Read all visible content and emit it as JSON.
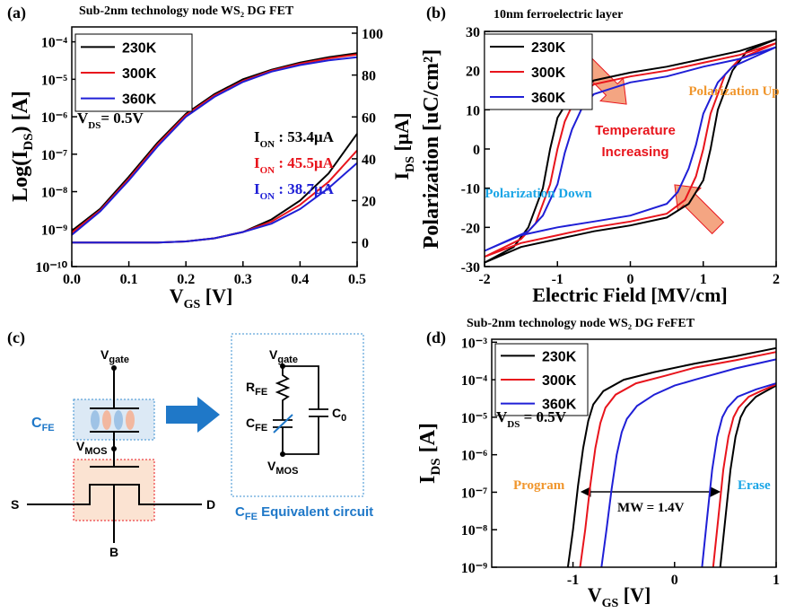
{
  "chart_data": [
    {
      "type": "line",
      "label": "(a)",
      "title": "Sub-2nm technology node WS₂ DG FET",
      "xlabel": [
        "V",
        "GS",
        " [V]"
      ],
      "ylabel": [
        "Log(I",
        "DS",
        ") [A]"
      ],
      "y2label": [
        "I",
        "DS",
        " [μA]"
      ],
      "log_y": true,
      "xlim": [
        0,
        0.5
      ],
      "ylim": [
        1e-10,
        0.00025
      ],
      "y2lim": [
        -11.5,
        103
      ],
      "xticks": [
        {
          "value": 0,
          "label": "0.0"
        },
        {
          "value": 0.1,
          "label": "0.1"
        },
        {
          "value": 0.2,
          "label": "0.2"
        },
        {
          "value": 0.3,
          "label": "0.3"
        },
        {
          "value": 0.4,
          "label": "0.4"
        },
        {
          "value": 0.5,
          "label": "0.5"
        }
      ],
      "yticks": [
        {
          "value": 1e-10,
          "label": "10⁻¹⁰"
        },
        {
          "value": 1e-09,
          "label": "10⁻⁹"
        },
        {
          "value": 1e-08,
          "label": "10⁻⁸"
        },
        {
          "value": 1e-07,
          "label": "10⁻⁷"
        },
        {
          "value": 1e-06,
          "label": "10⁻⁶"
        },
        {
          "value": 1e-05,
          "label": "10⁻⁵"
        },
        {
          "value": 0.0001,
          "label": "10⁻⁴"
        }
      ],
      "y2ticks": [
        0,
        20,
        40,
        60,
        80,
        100
      ],
      "x": [
        0,
        0.05,
        0.1,
        0.15,
        0.2,
        0.25,
        0.3,
        0.35,
        0.4,
        0.45,
        0.5
      ],
      "series": [
        {
          "name": "230K",
          "color": "#000000",
          "values": [
            9e-10,
            3.5e-09,
            2.5e-08,
            2e-07,
            1.2e-06,
            4e-06,
            1e-05,
            1.8e-05,
            2.8e-05,
            3.9e-05,
            5e-05
          ]
        },
        {
          "name": "300K",
          "color": "#e8141c",
          "values": [
            8e-10,
            3.2e-09,
            2.2e-08,
            1.8e-07,
            1.1e-06,
            3.7e-06,
            9e-06,
            1.7e-05,
            2.6e-05,
            3.6e-05,
            4.6e-05
          ]
        },
        {
          "name": "360K",
          "color": "#1f1fd6",
          "values": [
            7e-10,
            3e-09,
            2e-08,
            1.6e-07,
            1e-06,
            3.4e-06,
            8.5e-06,
            1.6e-05,
            2.4e-05,
            3.2e-05,
            3.9e-05
          ]
        },
        {
          "name": "230K",
          "color": "#000000",
          "axis": "y2",
          "values": [
            0,
            0,
            0,
            0,
            0.5,
            2,
            5,
            11,
            20,
            33,
            52
          ]
        },
        {
          "name": "300K",
          "color": "#e8141c",
          "axis": "y2",
          "values": [
            0,
            0,
            0,
            0,
            0.5,
            2,
            5,
            10,
            18,
            29,
            44
          ]
        },
        {
          "name": "360K",
          "color": "#1f1fd6",
          "axis": "y2",
          "values": [
            0,
            0,
            0,
            0,
            0.5,
            2,
            5,
            9,
            16,
            26,
            38
          ]
        }
      ],
      "annotations": [
        {
          "text": [
            "I",
            "ON",
            " : 53.4μA"
          ],
          "color": "#000000"
        },
        {
          "text": [
            "I",
            "ON",
            " : 45.5μA"
          ],
          "color": "#e8141c"
        },
        {
          "text": [
            "I",
            "ON",
            " : 38.7μA"
          ],
          "color": "#1f1fd6"
        },
        {
          "text": [
            "V",
            "DS",
            "= 0.5V"
          ],
          "color": "#000000"
        }
      ]
    },
    {
      "type": "line",
      "label": "(b)",
      "title": "10nm ferroelectric layer",
      "xlabel": "Electric Field [MV/cm]",
      "ylabel": "Polarization [uC/cm²]",
      "xlim": [
        -2,
        2
      ],
      "ylim": [
        -30,
        30
      ],
      "xticks": [
        -2,
        -1,
        0,
        1,
        2
      ],
      "yticks": [
        -30,
        -20,
        -10,
        0,
        10,
        20,
        30
      ],
      "series": [
        {
          "name": "230K",
          "color": "#000000",
          "x": [
            2,
            1.5,
            1,
            0.5,
            0,
            -0.5,
            -0.8,
            -1,
            -1.1,
            -1.2,
            -1.4,
            -1.6,
            -2,
            -1.5,
            -1,
            -0.5,
            0,
            0.5,
            0.8,
            1,
            1.1,
            1.2,
            1.4,
            1.6,
            2
          ],
          "values": [
            28,
            25,
            23,
            21,
            19.5,
            17.5,
            14,
            8,
            0,
            -10,
            -20,
            -25,
            -29,
            -25,
            -23,
            -21,
            -19.5,
            -17.5,
            -14,
            -8,
            0,
            10,
            20,
            25,
            28
          ]
        },
        {
          "name": "300K",
          "color": "#e8141c",
          "x": [
            2,
            1.5,
            1,
            0.5,
            0,
            -0.5,
            -0.75,
            -0.9,
            -1,
            -1.1,
            -1.3,
            -1.5,
            -2,
            -1.5,
            -1,
            -0.5,
            0,
            0.5,
            0.75,
            0.9,
            1,
            1.1,
            1.3,
            1.5,
            2
          ],
          "values": [
            27,
            24,
            22,
            20,
            18.5,
            16.5,
            13,
            7,
            0,
            -9,
            -19,
            -23,
            -27.5,
            -24,
            -22,
            -20,
            -18.5,
            -16.5,
            -13,
            -7,
            0,
            9,
            19,
            23,
            27
          ]
        },
        {
          "name": "360K",
          "color": "#1f1fd6",
          "x": [
            2,
            1.5,
            1,
            0.5,
            0,
            -0.5,
            -0.65,
            -0.8,
            -0.9,
            -1,
            -1.2,
            -1.4,
            -2,
            -1.5,
            -1,
            -0.5,
            0,
            0.5,
            0.65,
            0.8,
            0.9,
            1,
            1.2,
            1.4,
            2
          ],
          "values": [
            26,
            23,
            21,
            18.5,
            17,
            14,
            11,
            5,
            -1,
            -9,
            -17,
            -21,
            -26,
            -22,
            -20,
            -18.5,
            -17,
            -14,
            -11,
            -5,
            1,
            9,
            17,
            21,
            26
          ]
        }
      ],
      "annotations": [
        {
          "text": "Polarization Up",
          "color": "#f0962d"
        },
        {
          "text": "Polarization Down",
          "color": "#19a5e6"
        },
        {
          "text": "Temperature",
          "color": "#e8141c"
        },
        {
          "text": "Increasing",
          "color": "#e8141c"
        }
      ]
    },
    {
      "type": "line",
      "label": "(d)",
      "title": "Sub-2nm technology node WS₂ DG FeFET",
      "xlabel": [
        "V",
        "GS",
        " [V]"
      ],
      "ylabel": [
        "I",
        "DS",
        " [A]"
      ],
      "log_y": true,
      "xlim": [
        -1.8,
        1
      ],
      "ylim": [
        1e-09,
        0.0012
      ],
      "xticks": [
        -1,
        0,
        1
      ],
      "yticks": [
        {
          "value": 1e-09,
          "label": "10⁻⁹"
        },
        {
          "value": 1e-08,
          "label": "10⁻⁸"
        },
        {
          "value": 1e-07,
          "label": "10⁻⁷"
        },
        {
          "value": 1e-06,
          "label": "10⁻⁶"
        },
        {
          "value": 1e-05,
          "label": "10⁻⁵"
        },
        {
          "value": 0.0001,
          "label": "10⁻⁴"
        },
        {
          "value": 0.001,
          "label": "10⁻³"
        }
      ],
      "series": [
        {
          "name": "230K",
          "color": "#000000",
          "x": [
            -1.05,
            -1,
            -0.95,
            -0.9,
            -0.85,
            -0.8,
            -0.7,
            -0.5,
            -0.2,
            0.2,
            0.6,
            1,
            null,
            0.45,
            0.5,
            0.55,
            0.6,
            0.65,
            0.7,
            0.8,
            0.9,
            1
          ],
          "values": [
            1e-09,
            1e-08,
            1.5e-07,
            1.5e-06,
            8e-06,
            2.2e-05,
            5e-05,
            0.0001,
            0.00016,
            0.00027,
            0.00042,
            0.0007,
            null,
            1e-09,
            2e-08,
            4e-07,
            3e-06,
            1e-05,
            1.8e-05,
            3.5e-05,
            5e-05,
            7e-05
          ]
        },
        {
          "name": "300K",
          "color": "#e8141c",
          "x": [
            -0.93,
            -0.88,
            -0.83,
            -0.78,
            -0.73,
            -0.68,
            -0.58,
            -0.38,
            -0.08,
            0.2,
            0.6,
            1,
            null,
            0.38,
            0.43,
            0.48,
            0.53,
            0.58,
            0.63,
            0.73,
            0.85,
            1
          ],
          "values": [
            1e-09,
            1e-08,
            1.5e-07,
            1.5e-06,
            7e-06,
            1.8e-05,
            4e-05,
            8e-05,
            0.00013,
            0.00021,
            0.00033,
            0.00055,
            null,
            1e-09,
            2e-08,
            4e-07,
            3e-06,
            1e-05,
            1.8e-05,
            3.5e-05,
            5e-05,
            7.5e-05
          ]
        },
        {
          "name": "360K",
          "color": "#1f1fd6",
          "x": [
            -0.72,
            -0.67,
            -0.62,
            -0.57,
            -0.52,
            -0.47,
            -0.37,
            -0.2,
            0,
            0.2,
            0.6,
            1,
            null,
            0.27,
            0.32,
            0.37,
            0.42,
            0.47,
            0.52,
            0.62,
            0.8,
            1
          ],
          "values": [
            1e-09,
            1e-08,
            1.2e-07,
            1e-06,
            4e-06,
            9e-06,
            2e-05,
            4e-05,
            7e-05,
            0.0001,
            0.0002,
            0.00035,
            null,
            1e-09,
            2e-08,
            4e-07,
            3e-06,
            1e-05,
            1.8e-05,
            3.5e-05,
            5.5e-05,
            8e-05
          ]
        }
      ],
      "annotations": [
        {
          "text": [
            "V",
            "DS",
            " = 0.5V"
          ],
          "color": "#000000"
        },
        {
          "text": "Program",
          "color": "#f0962d"
        },
        {
          "text": "Erase",
          "color": "#19a5e6"
        },
        {
          "text": "MW = 1.4V",
          "color": "#000000"
        }
      ]
    }
  ],
  "diagram": {
    "label": "(c)",
    "circuit": {
      "v_gate": [
        "V",
        "gate"
      ],
      "c_fe": [
        "C",
        "FE"
      ],
      "v_mos": [
        "V",
        "MOS"
      ],
      "source": "S",
      "drain": "D",
      "body": "B"
    },
    "equivalent": {
      "v_gate": [
        "V",
        "gate"
      ],
      "r_fe": [
        "R",
        "FE"
      ],
      "c_fe": [
        "C",
        "FE"
      ],
      "c_0": [
        "C",
        "0"
      ],
      "v_mos": [
        "V",
        "MOS"
      ],
      "caption": [
        "C",
        "FE",
        " Equivalent circuit"
      ]
    }
  }
}
